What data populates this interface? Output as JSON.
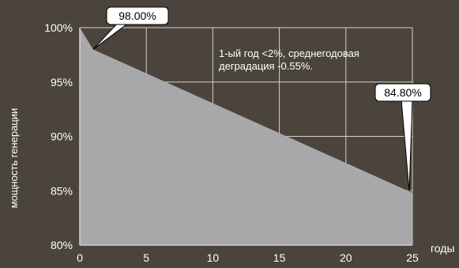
{
  "chart_data": {
    "type": "area",
    "title": "",
    "ylabel": "мощность генерации",
    "xlabel": "годы",
    "xlim": [
      0,
      25
    ],
    "ylim": [
      80,
      100
    ],
    "grid": true,
    "x_ticks": [
      "0",
      "5",
      "10",
      "15",
      "20",
      "25"
    ],
    "y_ticks": [
      "80%",
      "85%",
      "90%",
      "95%",
      "100%"
    ],
    "series": [
      {
        "x": [
          0,
          1,
          25
        ],
        "values": [
          100,
          98.0,
          84.8
        ]
      }
    ],
    "annotations": {
      "start": "98.00%",
      "end": "84.80%",
      "note_line1": "1-ый год <2%, среднегодовая",
      "note_line2": "деградация -0.55%."
    },
    "colors": {
      "background": "#4a443d",
      "area": "#a8a8ab",
      "grid": "#d7d3c8",
      "text": "#ffffff",
      "callout_bg": "#ffffff",
      "callout_text": "#000000"
    }
  }
}
